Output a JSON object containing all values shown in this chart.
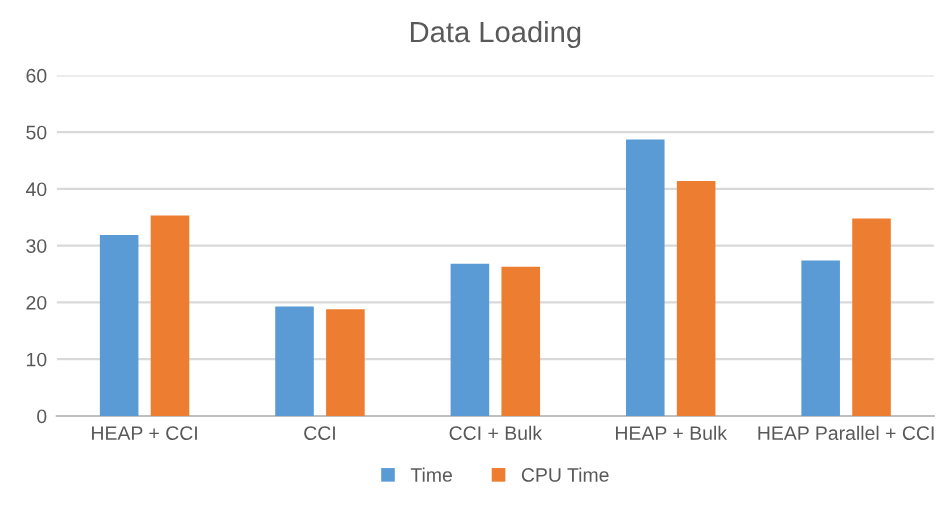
{
  "chart_data": {
    "type": "bar",
    "title": "Data Loading",
    "categories": [
      "HEAP + CCI",
      "CCI",
      "CCI + Bulk",
      "HEAP + Bulk",
      "HEAP Parallel + CCI"
    ],
    "series": [
      {
        "name": "Time",
        "color": "#5b9bd5",
        "values": [
          31.9,
          19.3,
          26.8,
          48.7,
          27.4
        ]
      },
      {
        "name": "CPU Time",
        "color": "#ed7d31",
        "values": [
          35.3,
          18.8,
          26.3,
          41.4,
          34.8
        ]
      }
    ],
    "ylim": [
      0,
      60
    ],
    "yticks": [
      0,
      10,
      20,
      30,
      40,
      50,
      60
    ],
    "grid": "y",
    "legend": "bottom"
  }
}
